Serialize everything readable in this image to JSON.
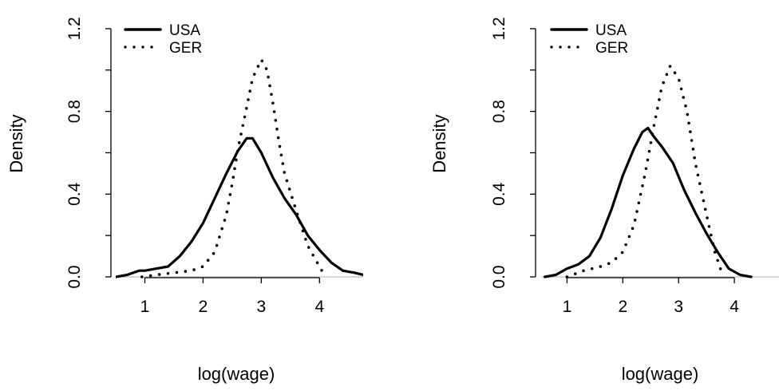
{
  "chart_data": [
    {
      "type": "line",
      "title": "",
      "xlabel": "log(wage)",
      "ylabel": "Density",
      "xlim": [
        0.5,
        4.75
      ],
      "ylim": [
        0,
        1.3
      ],
      "xticks": [
        "1",
        "2",
        "3",
        "4"
      ],
      "yticks": [
        "0.0",
        "0.4",
        "0.8",
        "1.2"
      ],
      "legend_position": "top-left",
      "reference_line": 0,
      "series": [
        {
          "name": "USA",
          "style": "solid",
          "x": [
            0.5,
            0.7,
            0.9,
            1.0,
            1.2,
            1.4,
            1.6,
            1.8,
            2.0,
            2.2,
            2.4,
            2.6,
            2.75,
            2.85,
            3.0,
            3.2,
            3.4,
            3.6,
            3.8,
            4.0,
            4.2,
            4.4,
            4.6,
            4.75
          ],
          "y": [
            0.0,
            0.01,
            0.03,
            0.03,
            0.04,
            0.05,
            0.1,
            0.17,
            0.26,
            0.38,
            0.5,
            0.61,
            0.67,
            0.67,
            0.6,
            0.48,
            0.38,
            0.3,
            0.2,
            0.13,
            0.07,
            0.03,
            0.02,
            0.01
          ]
        },
        {
          "name": "GER",
          "style": "dotted",
          "x": [
            0.95,
            1.2,
            1.5,
            1.8,
            2.0,
            2.2,
            2.4,
            2.5,
            2.6,
            2.75,
            2.85,
            3.0,
            3.1,
            3.2,
            3.3,
            3.4,
            3.6,
            3.8,
            4.0,
            4.1
          ],
          "y": [
            0.0,
            0.01,
            0.02,
            0.03,
            0.05,
            0.12,
            0.3,
            0.45,
            0.62,
            0.82,
            0.96,
            1.05,
            1.0,
            0.84,
            0.66,
            0.5,
            0.32,
            0.15,
            0.05,
            0.0
          ]
        }
      ]
    },
    {
      "type": "line",
      "title": "",
      "xlabel": "log(wage)",
      "ylabel": "Density",
      "xlim": [
        0.55,
        4.8
      ],
      "ylim": [
        0,
        1.3
      ],
      "xticks": [
        "1",
        "2",
        "3",
        "4"
      ],
      "yticks": [
        "0.0",
        "0.4",
        "0.8",
        "1.2"
      ],
      "legend_position": "top-left",
      "reference_line": 0,
      "series": [
        {
          "name": "USA",
          "style": "solid",
          "x": [
            0.6,
            0.8,
            1.0,
            1.2,
            1.4,
            1.6,
            1.8,
            2.0,
            2.2,
            2.35,
            2.45,
            2.55,
            2.7,
            2.9,
            3.1,
            3.3,
            3.5,
            3.7,
            3.9,
            4.1,
            4.3
          ],
          "y": [
            0.0,
            0.01,
            0.04,
            0.06,
            0.1,
            0.19,
            0.33,
            0.49,
            0.62,
            0.7,
            0.72,
            0.68,
            0.63,
            0.55,
            0.42,
            0.31,
            0.21,
            0.12,
            0.04,
            0.01,
            0.0
          ]
        },
        {
          "name": "GER",
          "style": "dotted",
          "x": [
            1.0,
            1.3,
            1.6,
            1.8,
            2.0,
            2.2,
            2.4,
            2.55,
            2.7,
            2.85,
            3.0,
            3.15,
            3.3,
            3.5,
            3.65,
            3.8
          ],
          "y": [
            0.0,
            0.03,
            0.05,
            0.07,
            0.12,
            0.25,
            0.5,
            0.72,
            0.92,
            1.02,
            0.96,
            0.8,
            0.55,
            0.3,
            0.12,
            0.0
          ]
        }
      ]
    }
  ]
}
